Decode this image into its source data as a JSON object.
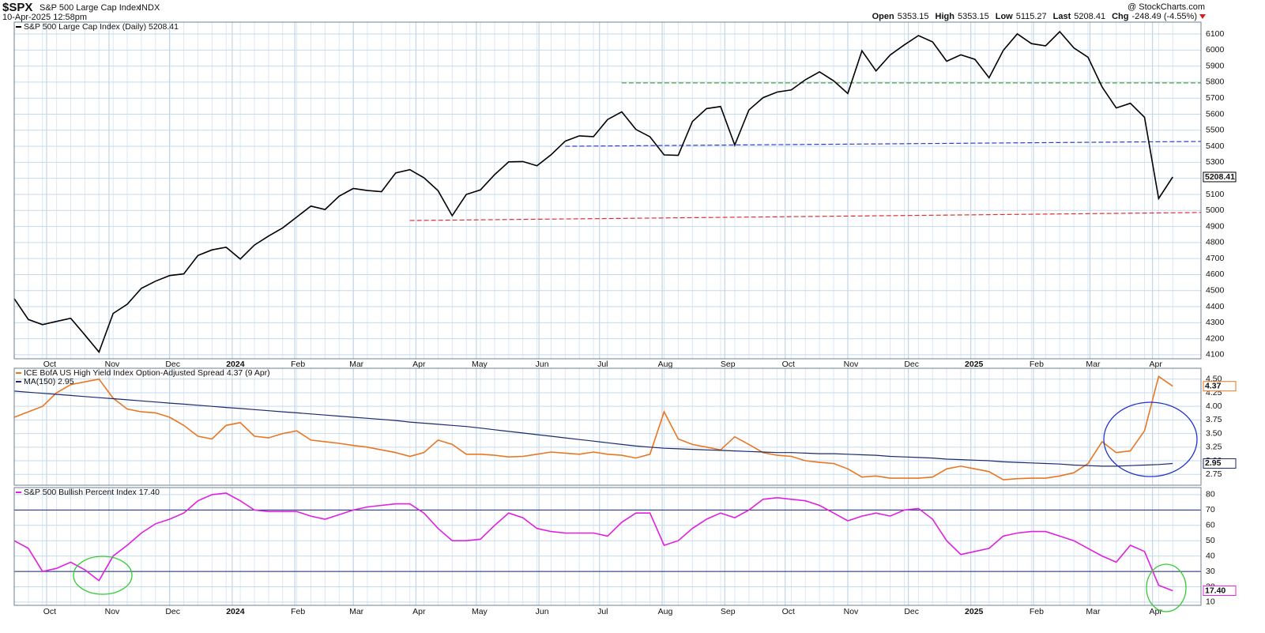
{
  "header": {
    "symbol": "$SPX",
    "name": "S&P 500 Large Cap Index",
    "exchange": "INDX",
    "timestamp": "10-Apr-2025 12:58pm",
    "source": "@ StockCharts.com",
    "quote": [
      {
        "label": "Open",
        "value": "5353.15"
      },
      {
        "label": "High",
        "value": "5353.15"
      },
      {
        "label": "Low",
        "value": "5115.27"
      },
      {
        "label": "Last",
        "value": "5208.41"
      },
      {
        "label": "Chg",
        "value": "-248.49 (-4.55%)"
      }
    ]
  },
  "chart_data": [
    {
      "type": "line",
      "grid": true,
      "x": [
        0,
        1,
        2,
        3,
        4,
        5,
        6,
        7,
        8,
        9,
        10,
        11,
        12,
        13,
        14,
        15,
        16,
        17,
        18,
        19,
        20,
        21,
        22,
        23,
        24,
        25,
        26,
        27,
        28,
        29,
        30,
        31,
        32,
        33,
        34,
        35,
        36,
        37,
        38,
        39,
        40,
        41,
        42,
        43,
        44,
        45,
        46,
        47,
        48,
        49,
        50,
        51,
        52,
        53,
        54,
        55,
        56,
        57,
        58,
        59,
        60,
        61,
        62,
        63,
        64,
        65,
        66,
        67,
        68,
        69,
        70,
        71,
        72,
        73,
        74,
        75,
        76,
        77,
        78,
        79,
        80,
        81,
        82
      ],
      "xlim": [
        0,
        84
      ],
      "xticks": [
        {
          "value": 2.29,
          "label": "Oct"
        },
        {
          "value": 6.71,
          "label": "Nov"
        },
        {
          "value": 11.0,
          "label": "Dec"
        },
        {
          "value": 15.43,
          "label": "2024"
        },
        {
          "value": 19.86,
          "label": "Feb"
        },
        {
          "value": 24.0,
          "label": "Mar"
        },
        {
          "value": 28.43,
          "label": "Apr"
        },
        {
          "value": 32.71,
          "label": "May"
        },
        {
          "value": 37.14,
          "label": "Jun"
        },
        {
          "value": 41.43,
          "label": "Jul"
        },
        {
          "value": 45.86,
          "label": "Aug"
        },
        {
          "value": 50.29,
          "label": "Sep"
        },
        {
          "value": 54.57,
          "label": "Oct"
        },
        {
          "value": 59.0,
          "label": "Nov"
        },
        {
          "value": 63.29,
          "label": "Dec"
        },
        {
          "value": 67.71,
          "label": "2025"
        },
        {
          "value": 72.14,
          "label": "Feb"
        },
        {
          "value": 76.14,
          "label": "Mar"
        },
        {
          "value": 80.57,
          "label": "Apr"
        }
      ],
      "ylim": [
        4075,
        6174
      ],
      "yticks": [
        4100,
        4200,
        4300,
        4400,
        4500,
        4600,
        4700,
        4800,
        4900,
        5000,
        5100,
        5200,
        5300,
        5400,
        5500,
        5600,
        5700,
        5800,
        5900,
        6000,
        6100
      ],
      "series": [
        {
          "name": "S&P 500 Large Cap Index (Daily) 5208.41",
          "color": "#000000",
          "values": [
            4450,
            4320,
            4288,
            4308,
            4328,
            4224,
            4117,
            4358,
            4415,
            4514,
            4559,
            4594,
            4604,
            4719,
            4754,
            4770,
            4697,
            4784,
            4840,
            4891,
            4959,
            5027,
            5006,
            5089,
            5137,
            5124,
            5117,
            5234,
            5254,
            5204,
            5123,
            4967,
            5100,
            5128,
            5223,
            5303,
            5305,
            5278,
            5347,
            5432,
            5465,
            5460,
            5567,
            5615,
            5505,
            5459,
            5346,
            5344,
            5554,
            5635,
            5648,
            5408,
            5626,
            5703,
            5738,
            5751,
            5815,
            5864,
            5808,
            5729,
            5995,
            5870,
            5969,
            6032,
            6090,
            6051,
            5930,
            5970,
            5942,
            5827,
            5997,
            6101,
            6040,
            6026,
            6115,
            6013,
            5955,
            5770,
            5639,
            5668,
            5581,
            5074,
            5208.41
          ]
        }
      ],
      "trend_lines": [
        {
          "color": "#3a9a3a",
          "x": [
            43,
            84
          ],
          "y": [
            5795,
            5795
          ]
        },
        {
          "color": "#2d3fd0",
          "x": [
            39,
            84
          ],
          "y": [
            5400,
            5430
          ]
        },
        {
          "color": "#e03030",
          "x": [
            28,
            84
          ],
          "y": [
            4937,
            4987
          ]
        }
      ]
    },
    {
      "type": "line",
      "grid": true,
      "x": [
        0,
        1,
        2,
        3,
        4,
        5,
        6,
        7,
        8,
        9,
        10,
        11,
        12,
        13,
        14,
        15,
        16,
        17,
        18,
        19,
        20,
        21,
        22,
        23,
        24,
        25,
        26,
        27,
        28,
        29,
        30,
        31,
        32,
        33,
        34,
        35,
        36,
        37,
        38,
        39,
        40,
        41,
        42,
        43,
        44,
        45,
        46,
        47,
        48,
        49,
        50,
        51,
        52,
        53,
        54,
        55,
        56,
        57,
        58,
        59,
        60,
        61,
        62,
        63,
        64,
        65,
        66,
        67,
        68,
        69,
        70,
        71,
        72,
        73,
        74,
        75,
        76,
        77,
        78,
        79,
        80,
        81,
        82
      ],
      "xlim": [
        0,
        84
      ],
      "ylim": [
        2.55,
        4.7
      ],
      "yticks": [
        2.75,
        {
          "value": 3.0,
          "label": "3.00"
        },
        3.25,
        {
          "value": 3.5,
          "label": "3.50"
        },
        3.75,
        {
          "value": 4.0,
          "label": "4.00"
        },
        4.25,
        {
          "value": 4.5,
          "label": "4.50"
        }
      ],
      "series": [
        {
          "name": "ICE BofA US High Yield Index Option-Adjusted Spread 4.37 (9 Apr)",
          "color": "#e87722",
          "values": [
            3.8,
            3.9,
            4.0,
            4.25,
            4.4,
            4.45,
            4.5,
            4.15,
            3.95,
            3.9,
            3.88,
            3.8,
            3.65,
            3.45,
            3.4,
            3.65,
            3.7,
            3.45,
            3.42,
            3.5,
            3.55,
            3.38,
            3.35,
            3.32,
            3.28,
            3.25,
            3.2,
            3.15,
            3.08,
            3.15,
            3.38,
            3.3,
            3.12,
            3.12,
            3.1,
            3.07,
            3.08,
            3.12,
            3.16,
            3.14,
            3.12,
            3.16,
            3.12,
            3.1,
            3.05,
            3.12,
            3.9,
            3.4,
            3.3,
            3.25,
            3.2,
            3.44,
            3.3,
            3.15,
            3.1,
            3.08,
            3.0,
            2.97,
            2.95,
            2.85,
            2.7,
            2.72,
            2.68,
            2.68,
            2.68,
            2.7,
            2.85,
            2.9,
            2.85,
            2.8,
            2.65,
            2.67,
            2.68,
            2.68,
            2.72,
            2.78,
            2.95,
            3.35,
            3.15,
            3.18,
            3.55,
            4.55,
            4.37
          ]
        },
        {
          "name": "MA(150) 2.95",
          "color": "#1a2a6c",
          "values": [
            4.28,
            4.26,
            4.24,
            4.22,
            4.2,
            4.18,
            4.16,
            4.14,
            4.12,
            4.1,
            4.08,
            4.06,
            4.04,
            4.02,
            4.0,
            3.98,
            3.96,
            3.94,
            3.92,
            3.9,
            3.88,
            3.86,
            3.84,
            3.82,
            3.8,
            3.78,
            3.76,
            3.74,
            3.71,
            3.69,
            3.67,
            3.65,
            3.63,
            3.6,
            3.57,
            3.54,
            3.51,
            3.48,
            3.45,
            3.42,
            3.39,
            3.36,
            3.33,
            3.3,
            3.27,
            3.25,
            3.23,
            3.22,
            3.21,
            3.2,
            3.19,
            3.18,
            3.17,
            3.16,
            3.15,
            3.15,
            3.14,
            3.13,
            3.13,
            3.12,
            3.11,
            3.1,
            3.08,
            3.07,
            3.06,
            3.05,
            3.03,
            3.02,
            3.01,
            3.0,
            2.98,
            2.97,
            2.96,
            2.95,
            2.94,
            2.92,
            2.91,
            2.9,
            2.9,
            2.91,
            2.92,
            2.93,
            2.95
          ]
        }
      ]
    },
    {
      "type": "line",
      "grid": true,
      "x": [
        0,
        1,
        2,
        3,
        4,
        5,
        6,
        7,
        8,
        9,
        10,
        11,
        12,
        13,
        14,
        15,
        16,
        17,
        18,
        19,
        20,
        21,
        22,
        23,
        24,
        25,
        26,
        27,
        28,
        29,
        30,
        31,
        32,
        33,
        34,
        35,
        36,
        37,
        38,
        39,
        40,
        41,
        42,
        43,
        44,
        45,
        46,
        47,
        48,
        49,
        50,
        51,
        52,
        53,
        54,
        55,
        56,
        57,
        58,
        59,
        60,
        61,
        62,
        63,
        64,
        65,
        66,
        67,
        68,
        69,
        70,
        71,
        72,
        73,
        74,
        75,
        76,
        77,
        78,
        79,
        80,
        81,
        82
      ],
      "xlim": [
        0,
        84
      ],
      "xticks": [
        {
          "value": 2.29,
          "label": "Oct"
        },
        {
          "value": 6.71,
          "label": "Nov"
        },
        {
          "value": 11.0,
          "label": "Dec"
        },
        {
          "value": 15.43,
          "label": "2024"
        },
        {
          "value": 19.86,
          "label": "Feb"
        },
        {
          "value": 24.0,
          "label": "Mar"
        },
        {
          "value": 28.43,
          "label": "Apr"
        },
        {
          "value": 32.71,
          "label": "May"
        },
        {
          "value": 37.14,
          "label": "Jun"
        },
        {
          "value": 41.43,
          "label": "Jul"
        },
        {
          "value": 45.86,
          "label": "Aug"
        },
        {
          "value": 50.29,
          "label": "Sep"
        },
        {
          "value": 54.57,
          "label": "Oct"
        },
        {
          "value": 59.0,
          "label": "Nov"
        },
        {
          "value": 63.29,
          "label": "Dec"
        },
        {
          "value": 67.71,
          "label": "2025"
        },
        {
          "value": 72.14,
          "label": "Feb"
        },
        {
          "value": 76.14,
          "label": "Mar"
        },
        {
          "value": 80.57,
          "label": "Apr"
        }
      ],
      "ylim": [
        7.9,
        84.6
      ],
      "yticks": [
        10,
        20,
        30,
        40,
        50,
        60,
        70,
        80
      ],
      "hlines": [
        70,
        30
      ],
      "series": [
        {
          "name": "S&P 500 Bullish Percent Index 17.40",
          "color": "#e020e0",
          "values": [
            50,
            45,
            30,
            32,
            36,
            31,
            24,
            40,
            47,
            55,
            61,
            64,
            68,
            76,
            80,
            81,
            76,
            70,
            69,
            69,
            69,
            66,
            64,
            67,
            70,
            72,
            73,
            74,
            74,
            68,
            58,
            50,
            50,
            51,
            60,
            68,
            65,
            58,
            56,
            55,
            55,
            55,
            53,
            62,
            68,
            68,
            47,
            50,
            58,
            64,
            68,
            65,
            70,
            77,
            78,
            77,
            76,
            73,
            68,
            63,
            66,
            68,
            66,
            70,
            71,
            64,
            50,
            41,
            43,
            45,
            53,
            55,
            56,
            56,
            53,
            50,
            45,
            40,
            36,
            47,
            43,
            21,
            17.4
          ],
          "value_labels": [
            null,
            null,
            null,
            null,
            null,
            null,
            null,
            null,
            null,
            null,
            null,
            null,
            null,
            null,
            null,
            null,
            null,
            null,
            null,
            null,
            null,
            null,
            null,
            null,
            null,
            null,
            null,
            null,
            null,
            null,
            null,
            null,
            null,
            null,
            null,
            null,
            null,
            null,
            null,
            null,
            null,
            null,
            null,
            null,
            null,
            null,
            null,
            null,
            null,
            null,
            null,
            null,
            null,
            null,
            null,
            null,
            null,
            null,
            null,
            null,
            null,
            null,
            null,
            null,
            null,
            null,
            null,
            null,
            null,
            null,
            null,
            null,
            null,
            null,
            null,
            null,
            null,
            null,
            null,
            null,
            null,
            null,
            "17.40"
          ]
        }
      ]
    }
  ]
}
